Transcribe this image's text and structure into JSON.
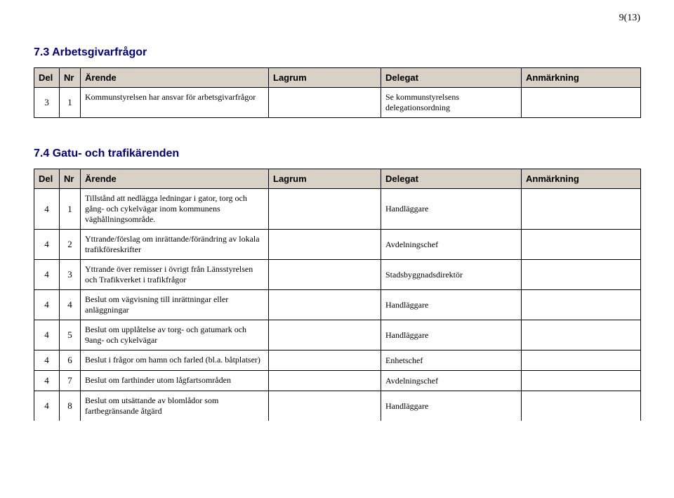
{
  "page_number": "9(13)",
  "section73": {
    "heading": "7.3 Arbetsgivarfrågor",
    "headers": {
      "del": "Del",
      "nr": "Nr",
      "arende": "Ärende",
      "lagrum": "Lagrum",
      "delegat": "Delegat",
      "anm": "Anmärkning"
    },
    "rows": [
      {
        "del": "3",
        "nr": "1",
        "arende": "Kommunstyrelsen har ansvar för arbetsgivarfrågor",
        "lagrum": "",
        "delegat": "Se kommunstyrelsens delegationsordning",
        "anm": ""
      }
    ]
  },
  "section74": {
    "heading": "7.4 Gatu- och trafikärenden",
    "headers": {
      "del": "Del",
      "nr": "Nr",
      "arende": "Ärende",
      "lagrum": "Lagrum",
      "delegat": "Delegat",
      "anm": "Anmärkning"
    },
    "rows": [
      {
        "del": "4",
        "nr": "1",
        "arende": "Tillstånd att nedlägga ledningar i gator, torg och gång- och cykelvägar inom kommunens väghållningsområde.",
        "lagrum": "",
        "delegat": "Handläggare",
        "anm": ""
      },
      {
        "del": "4",
        "nr": "2",
        "arende": "Yttrande/förslag om inrättande/förändring av lokala trafikföreskrifter",
        "lagrum": "",
        "delegat": "Avdelningschef",
        "anm": ""
      },
      {
        "del": "4",
        "nr": "3",
        "arende": "Yttrande över remisser i övrigt från Länsstyrelsen och Trafikverket i trafikfrågor",
        "lagrum": "",
        "delegat": "Stadsbyggnadsdirektör",
        "anm": ""
      },
      {
        "del": "4",
        "nr": "4",
        "arende": "Beslut om vägvisning till inrättningar eller anläggningar",
        "lagrum": "",
        "delegat": "Handläggare",
        "anm": ""
      },
      {
        "del": "4",
        "nr": "5",
        "arende": "Beslut om upplåtelse av torg- och gatumark och 9ang- och cykelvägar",
        "lagrum": "",
        "delegat": "Handläggare",
        "anm": ""
      },
      {
        "del": "4",
        "nr": "6",
        "arende": "Beslut i frågor om hamn och farled (bl.a. båtplatser)",
        "lagrum": "",
        "delegat": "Enhetschef",
        "anm": ""
      },
      {
        "del": "4",
        "nr": "7",
        "arende": "Beslut om farthinder utom lågfartsområden",
        "lagrum": "",
        "delegat": "Avdelningschef",
        "anm": ""
      },
      {
        "del": "4",
        "nr": "8",
        "arende": "Beslut om utsättande av blomlådor som fartbegränsande åtgärd",
        "lagrum": "",
        "delegat": "Handläggare",
        "anm": ""
      }
    ]
  },
  "colors": {
    "heading": "#000080",
    "header_bg": "#d9d0c6",
    "border": "#000000",
    "text": "#000000",
    "background": "#ffffff"
  }
}
